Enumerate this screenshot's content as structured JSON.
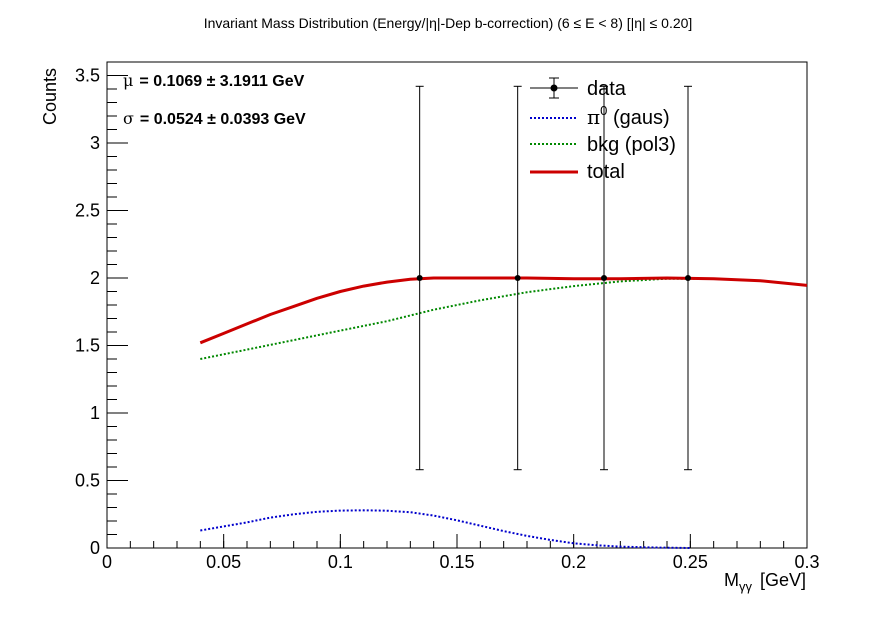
{
  "chart_data": {
    "type": "line",
    "title": "Invariant Mass Distribution (Energy/|η|-Dep b-correction)   (6 ≤ E < 8)   [|η| ≤ 0.20]",
    "xlabel": "M",
    "xlabel_sub": "γγ",
    "xlabel_unit": "[GeV]",
    "ylabel": "Counts",
    "xlim": [
      0,
      0.3
    ],
    "ylim": [
      0,
      3.6
    ],
    "x_ticks": [
      0,
      0.05,
      0.1,
      0.15,
      0.2,
      0.25,
      0.3
    ],
    "x_tick_labels": [
      "0",
      "0.05",
      "0.1",
      "0.15",
      "0.2",
      "0.25",
      "0.3"
    ],
    "y_ticks": [
      0,
      0.5,
      1,
      1.5,
      2,
      2.5,
      3,
      3.5
    ],
    "y_tick_labels": [
      "0",
      "0.5",
      "1",
      "1.5",
      "2",
      "2.5",
      "3",
      "3.5"
    ],
    "grid": false,
    "legend_position": "top-right",
    "fit_results": {
      "mu_symbol": "μ",
      "mu_text": "= 0.1069  ± 3.1911 GeV",
      "sigma_symbol": "σ",
      "sigma_text": "= 0.0524  ± 0.0393 GeV"
    },
    "data_points": {
      "name": "data",
      "x": [
        0.134,
        0.176,
        0.213,
        0.249
      ],
      "y": [
        2.0,
        2.0,
        2.0,
        2.0
      ],
      "err_low": [
        1.42,
        1.42,
        1.42,
        1.42
      ],
      "err_high": [
        1.42,
        1.42,
        1.42,
        1.42
      ]
    },
    "series": [
      {
        "name": "π⁰ (gaus)",
        "color": "#0000cc",
        "style": "dotted",
        "x": [
          0.04,
          0.05,
          0.06,
          0.07,
          0.08,
          0.09,
          0.1,
          0.11,
          0.12,
          0.13,
          0.14,
          0.15,
          0.16,
          0.17,
          0.18,
          0.19,
          0.2,
          0.21,
          0.22,
          0.23,
          0.24,
          0.25
        ],
        "y": [
          0.13,
          0.16,
          0.19,
          0.225,
          0.25,
          0.268,
          0.277,
          0.279,
          0.276,
          0.265,
          0.24,
          0.205,
          0.165,
          0.125,
          0.09,
          0.06,
          0.035,
          0.02,
          0.01,
          0.005,
          0.002,
          0.0
        ]
      },
      {
        "name": "bkg (pol3)",
        "color": "#008800",
        "style": "dotted",
        "x": [
          0.04,
          0.06,
          0.08,
          0.1,
          0.12,
          0.14,
          0.16,
          0.18,
          0.2,
          0.22,
          0.24,
          0.26,
          0.28,
          0.3
        ],
        "y": [
          1.4,
          1.47,
          1.54,
          1.61,
          1.68,
          1.765,
          1.835,
          1.895,
          1.94,
          1.975,
          1.995,
          1.995,
          1.98,
          1.945
        ]
      },
      {
        "name": "total",
        "color": "#cc0000",
        "style": "solid",
        "x": [
          0.04,
          0.05,
          0.06,
          0.07,
          0.08,
          0.09,
          0.1,
          0.11,
          0.12,
          0.13,
          0.14,
          0.15,
          0.16,
          0.18,
          0.2,
          0.22,
          0.24,
          0.26,
          0.28,
          0.3
        ],
        "y": [
          1.52,
          1.59,
          1.66,
          1.73,
          1.79,
          1.85,
          1.9,
          1.94,
          1.97,
          1.99,
          2.0,
          2.0,
          2.0,
          2.0,
          1.995,
          1.995,
          2.0,
          1.995,
          1.98,
          1.945
        ]
      }
    ],
    "legend": [
      {
        "label": "data",
        "kind": "marker"
      },
      {
        "label": "π",
        "sup": "0",
        "rest": " (gaus)",
        "kind": "line",
        "color": "#0000cc",
        "style": "dotted"
      },
      {
        "label": "bkg (pol3)",
        "kind": "line",
        "color": "#008800",
        "style": "dotted"
      },
      {
        "label": "total",
        "kind": "line",
        "color": "#cc0000",
        "style": "solid"
      }
    ]
  }
}
